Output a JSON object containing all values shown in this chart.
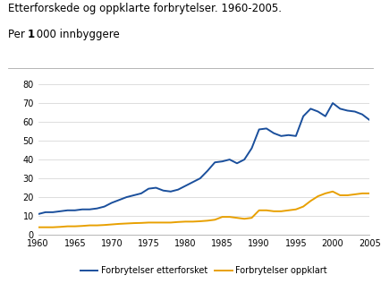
{
  "title_line1": "Etterforskede og oppklarte forbrytelser. 1960-2005.",
  "title_line2_part1": "Per ",
  "title_line2_bold": "1",
  "title_line2_part3": " 000 innbyggere",
  "xlim": [
    1960,
    2005
  ],
  "ylim": [
    0,
    80
  ],
  "yticks": [
    0,
    10,
    20,
    30,
    40,
    50,
    60,
    70,
    80
  ],
  "xticks": [
    1960,
    1965,
    1970,
    1975,
    1980,
    1985,
    1990,
    1995,
    2000,
    2005
  ],
  "blue_color": "#1a4f9c",
  "orange_color": "#e8a000",
  "background_color": "#ffffff",
  "legend_label_blue": "Forbrytelser etterforsket",
  "legend_label_orange": "Forbrytelser oppklart",
  "years": [
    1960,
    1961,
    1962,
    1963,
    1964,
    1965,
    1966,
    1967,
    1968,
    1969,
    1970,
    1971,
    1972,
    1973,
    1974,
    1975,
    1976,
    1977,
    1978,
    1979,
    1980,
    1981,
    1982,
    1983,
    1984,
    1985,
    1986,
    1987,
    1988,
    1989,
    1990,
    1991,
    1992,
    1993,
    1994,
    1995,
    1996,
    1997,
    1998,
    1999,
    2000,
    2001,
    2002,
    2003,
    2004,
    2005
  ],
  "blue_values": [
    11,
    12,
    12,
    12.5,
    13,
    13,
    13.5,
    13.5,
    14,
    15,
    17,
    18.5,
    20,
    21,
    22,
    24.5,
    25,
    23.5,
    23,
    24,
    26,
    28,
    30,
    34,
    38.5,
    39,
    40,
    38,
    40,
    46,
    56,
    56.5,
    54,
    52.5,
    53,
    52.5,
    63,
    67,
    65.5,
    63,
    70,
    67,
    66,
    65.5,
    64,
    61
  ],
  "orange_values": [
    4,
    4,
    4,
    4.2,
    4.5,
    4.5,
    4.7,
    5,
    5,
    5.2,
    5.5,
    5.8,
    6,
    6.2,
    6.3,
    6.5,
    6.5,
    6.5,
    6.5,
    6.8,
    7,
    7,
    7.2,
    7.5,
    8,
    9.5,
    9.5,
    9,
    8.5,
    9,
    13,
    13,
    12.5,
    12.5,
    13,
    13.5,
    15,
    18,
    20.5,
    22,
    23,
    21,
    21,
    21.5,
    22,
    22
  ]
}
